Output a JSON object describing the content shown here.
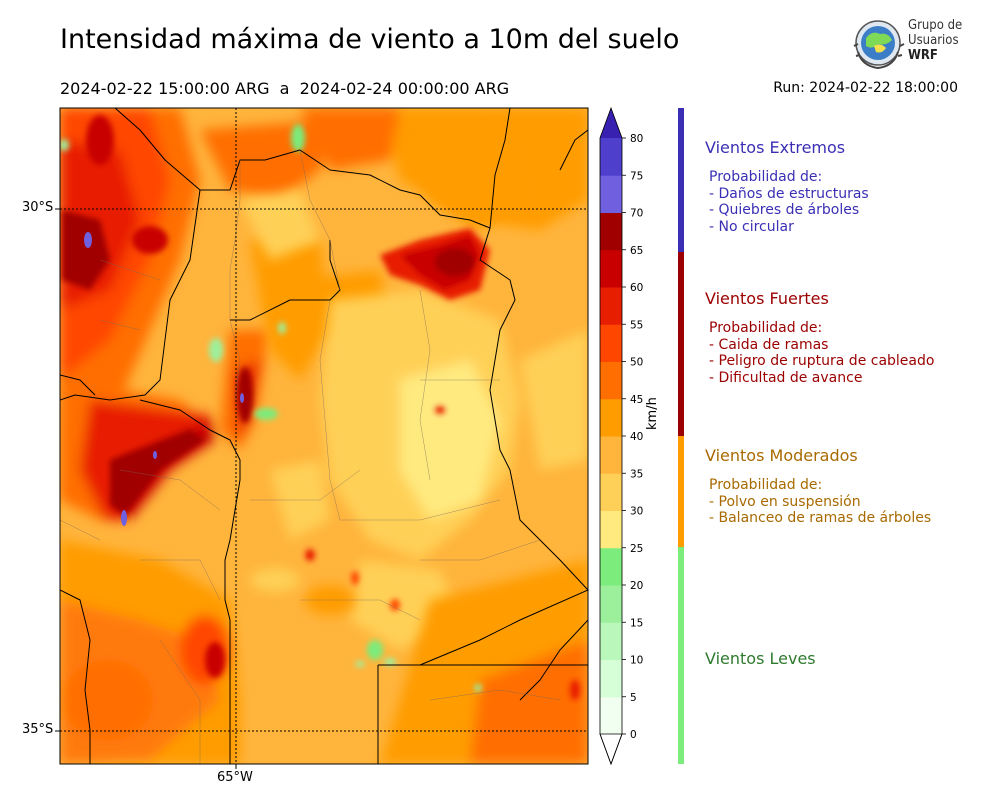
{
  "header": {
    "title": "Intensidad máxima de viento a 10m del suelo",
    "period": "2024-02-22 15:00:00 ARG  a  2024-02-24 00:00:00 ARG",
    "run": "Run: 2024-02-22 18:00:00"
  },
  "logo": {
    "line1": "Grupo de",
    "line2": "Usuarios",
    "line3": "WRF"
  },
  "map": {
    "lat_labels": [
      "30°S",
      "35°S"
    ],
    "lon_labels": [
      "65°W"
    ]
  },
  "colorbar": {
    "unit": "km/h",
    "ticks": [
      "0",
      "5",
      "10",
      "15",
      "20",
      "25",
      "30",
      "35",
      "40",
      "45",
      "50",
      "55",
      "60",
      "65",
      "70",
      "75",
      "80"
    ],
    "colors": [
      "#f1fff1",
      "#d7ffd7",
      "#baf7ba",
      "#9cf09c",
      "#7cec7c",
      "#ffea80",
      "#ffd057",
      "#ffb43c",
      "#ff9c00",
      "#ff6e00",
      "#ff4600",
      "#e81e00",
      "#c80000",
      "#a00000",
      "#7060e0",
      "#4e40cc",
      "#3820b0"
    ],
    "extend_top_color": "#3820b0",
    "extend_bottom_color": "#ffffff"
  },
  "categories": [
    {
      "title": "Vientos Extremos",
      "color": "#3a2fb4",
      "lines": "Probabilidad de:\n- Daños de estructuras\n- Quiebres de árboles\n- No circular"
    },
    {
      "title": "Vientos Fuertes",
      "color": "#9b0000",
      "lines": "Probabilidad de:\n- Caida de ramas\n- Peligro de ruptura de cableado\n- Dificultad de avance"
    },
    {
      "title": "Vientos Moderados",
      "color": "#a86a00",
      "lines": "Probabilidad de:\n- Polvo en suspensión\n- Balanceo de ramas de árboles"
    },
    {
      "title": "Vientos Leves",
      "color": "#2e7a2e",
      "lines": ""
    }
  ],
  "category_bar_colors": [
    "#3a2fb4",
    "#9b0000",
    "#ff9c00",
    "#7cec7c"
  ]
}
